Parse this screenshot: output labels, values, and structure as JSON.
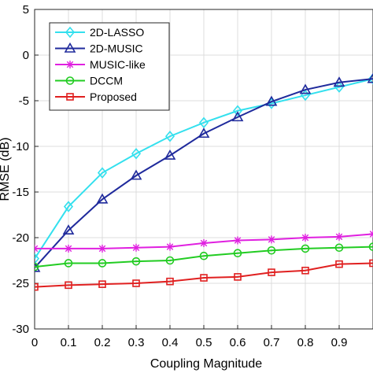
{
  "chart_data": {
    "type": "line",
    "xlabel": "Coupling Magnitude",
    "ylabel": "RMSE (dB)",
    "xlim": [
      0,
      1
    ],
    "ylim": [
      -30,
      5
    ],
    "x_ticks": [
      "0",
      "0.1",
      "0.2",
      "0.3",
      "0.4",
      "0.5",
      "0.6",
      "0.7",
      "0.8",
      "0.9"
    ],
    "y_ticks": [
      "5",
      "0",
      "-5",
      "-10",
      "-15",
      "-20",
      "-25",
      "-30"
    ],
    "grid": true,
    "legend_position": "top-left",
    "x": [
      0,
      0.1,
      0.2,
      0.3,
      0.4,
      0.5,
      0.6,
      0.7,
      0.8,
      0.9,
      1.0
    ],
    "series": [
      {
        "name": "2D-LASSO",
        "color": "#33e0ee",
        "marker": "diamond",
        "values": [
          -22.3,
          -16.6,
          -12.9,
          -10.8,
          -8.9,
          -7.4,
          -6.1,
          -5.3,
          -4.4,
          -3.5,
          -2.6
        ]
      },
      {
        "name": "2D-MUSIC",
        "color": "#1f2a9c",
        "marker": "triangle",
        "values": [
          -23.3,
          -19.2,
          -15.8,
          -13.2,
          -11.0,
          -8.6,
          -6.8,
          -5.1,
          -3.8,
          -3.0,
          -2.6
        ]
      },
      {
        "name": "MUSIC-like",
        "color": "#e020e0",
        "marker": "asterisk",
        "values": [
          -21.2,
          -21.2,
          -21.2,
          -21.1,
          -21.0,
          -20.6,
          -20.3,
          -20.2,
          -20.0,
          -19.9,
          -19.6
        ]
      },
      {
        "name": "DCCM",
        "color": "#22cc22",
        "marker": "circle",
        "values": [
          -23.2,
          -22.8,
          -22.8,
          -22.6,
          -22.5,
          -22.0,
          -21.7,
          -21.4,
          -21.2,
          -21.1,
          -21.0
        ]
      },
      {
        "name": "Proposed",
        "color": "#e02020",
        "marker": "square",
        "values": [
          -25.4,
          -25.2,
          -25.1,
          -25.0,
          -24.8,
          -24.4,
          -24.3,
          -23.8,
          -23.6,
          -22.9,
          -22.8
        ]
      }
    ]
  }
}
